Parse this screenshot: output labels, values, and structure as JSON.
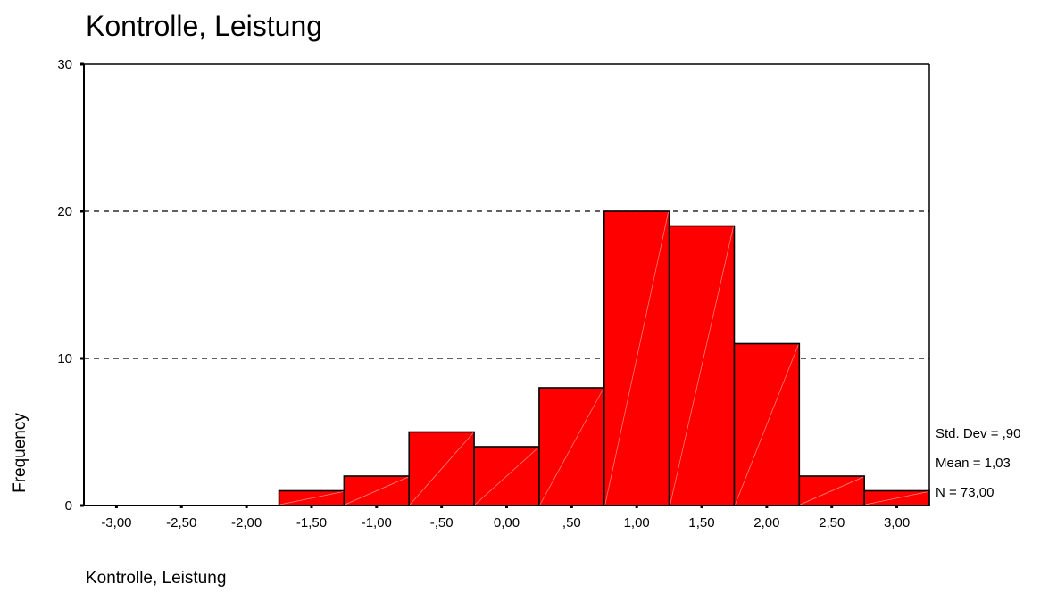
{
  "chart_data": {
    "type": "bar",
    "title": "Kontrolle, Leistung",
    "xlabel": "Kontrolle, Leistung",
    "ylabel": "Frequency",
    "x_ticks": [
      "-3,00",
      "-2,50",
      "-2,00",
      "-1,50",
      "-1,00",
      "-,50",
      "0,00",
      ",50",
      "1,00",
      "1,50",
      "2,00",
      "2,50",
      "3,00"
    ],
    "x_tick_values": [
      -3.0,
      -2.5,
      -2.0,
      -1.5,
      -1.0,
      -0.5,
      0.0,
      0.5,
      1.0,
      1.5,
      2.0,
      2.5,
      3.0
    ],
    "xlim": [
      -3.25,
      3.25
    ],
    "bin_width": 0.5,
    "bins": [
      {
        "center": -1.5,
        "count": 1
      },
      {
        "center": -1.0,
        "count": 2
      },
      {
        "center": -0.5,
        "count": 5
      },
      {
        "center": 0.0,
        "count": 4
      },
      {
        "center": 0.5,
        "count": 8
      },
      {
        "center": 1.0,
        "count": 20
      },
      {
        "center": 1.5,
        "count": 19
      },
      {
        "center": 2.0,
        "count": 11
      },
      {
        "center": 2.5,
        "count": 2
      },
      {
        "center": 3.0,
        "count": 1
      }
    ],
    "y_ticks": [
      "0",
      "10",
      "20",
      "30"
    ],
    "y_tick_values": [
      0,
      10,
      20,
      30
    ],
    "ylim": [
      0,
      30
    ],
    "grid": "horizontal dashed at 10 and 20",
    "bar_color": "#ff0000",
    "stats": {
      "std_dev": "Std. Dev = ,90",
      "mean": "Mean = 1,03",
      "n": "N = 73,00"
    }
  }
}
